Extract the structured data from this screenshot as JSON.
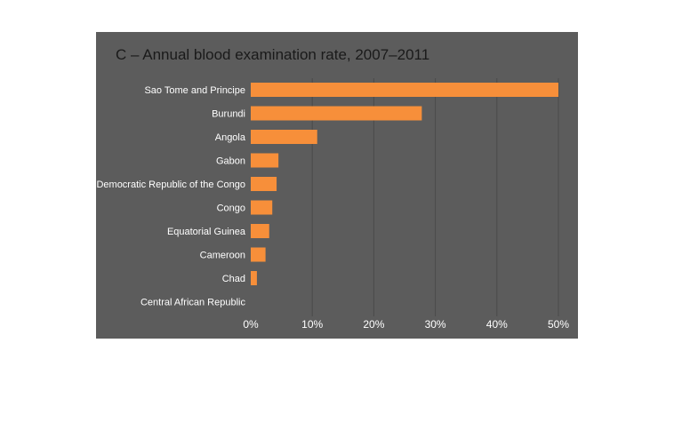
{
  "chart_data": {
    "type": "bar",
    "orientation": "horizontal",
    "title": "C – Annual blood examination rate, 2007–2011",
    "categories": [
      "Sao Tome and Principe",
      "Burundi",
      "Angola",
      "Gabon",
      "Democratic Republic of the Congo",
      "Congo",
      "Equatorial Guinea",
      "Cameroon",
      "Chad",
      "Central African Republic"
    ],
    "values": [
      50,
      27.8,
      10.8,
      4.5,
      4.2,
      3.5,
      3.0,
      2.4,
      1.0,
      0
    ],
    "xlim": [
      0,
      50
    ],
    "xticks": [
      0,
      10,
      20,
      30,
      40,
      50
    ],
    "xtick_labels": [
      "0%",
      "10%",
      "20%",
      "30%",
      "40%",
      "50%"
    ],
    "grid": "vertical",
    "legend": "none",
    "colors": {
      "background": "#5c5c5c",
      "bar": "#f78f3a",
      "text": "#ffffff",
      "title": "#1a1a1a",
      "grid": "#4a4a4a"
    }
  }
}
